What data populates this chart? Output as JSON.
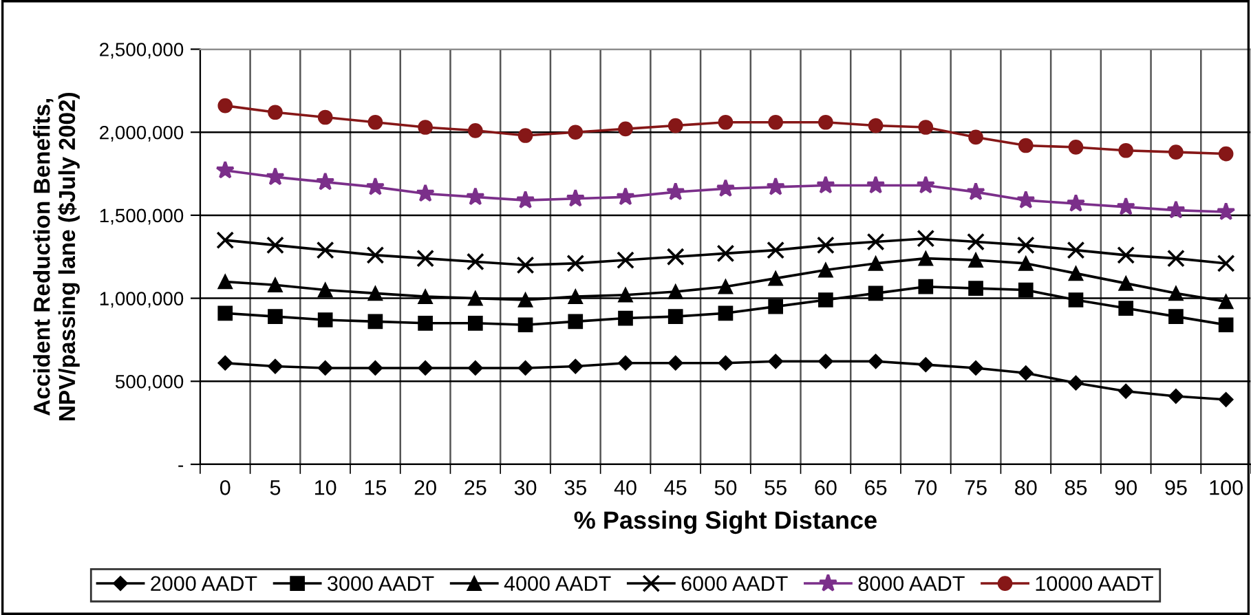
{
  "chart_data": {
    "type": "line",
    "xlabel": "% Passing Sight Distance",
    "ylabel": "Accident Reduction Benefits,\nNPV/passing lane ($July 2002)",
    "categories": [
      "0",
      "5",
      "10",
      "15",
      "20",
      "25",
      "30",
      "35",
      "40",
      "45",
      "50",
      "55",
      "60",
      "65",
      "70",
      "75",
      "80",
      "85",
      "90",
      "95",
      "100"
    ],
    "series": [
      {
        "name": "2000 AADT",
        "color": "#000000",
        "marker": "diamond",
        "values": [
          610000,
          590000,
          580000,
          580000,
          580000,
          580000,
          580000,
          590000,
          610000,
          610000,
          610000,
          620000,
          620000,
          620000,
          600000,
          580000,
          550000,
          490000,
          440000,
          410000,
          390000
        ]
      },
      {
        "name": "3000 AADT",
        "color": "#000000",
        "marker": "square",
        "values": [
          910000,
          890000,
          870000,
          860000,
          850000,
          850000,
          840000,
          860000,
          880000,
          890000,
          910000,
          950000,
          990000,
          1030000,
          1070000,
          1060000,
          1050000,
          990000,
          940000,
          890000,
          840000
        ]
      },
      {
        "name": "4000 AADT",
        "color": "#000000",
        "marker": "triangle",
        "values": [
          1100000,
          1080000,
          1050000,
          1030000,
          1010000,
          1000000,
          990000,
          1010000,
          1020000,
          1040000,
          1070000,
          1120000,
          1170000,
          1210000,
          1240000,
          1230000,
          1210000,
          1150000,
          1090000,
          1030000,
          980000
        ]
      },
      {
        "name": "6000 AADT",
        "color": "#000000",
        "marker": "cross",
        "values": [
          1350000,
          1320000,
          1290000,
          1260000,
          1240000,
          1220000,
          1200000,
          1210000,
          1230000,
          1250000,
          1270000,
          1290000,
          1320000,
          1340000,
          1360000,
          1340000,
          1320000,
          1290000,
          1260000,
          1240000,
          1210000
        ]
      },
      {
        "name": "8000 AADT",
        "color": "#7b2f8a",
        "marker": "star",
        "values": [
          1770000,
          1730000,
          1700000,
          1670000,
          1630000,
          1610000,
          1590000,
          1600000,
          1610000,
          1640000,
          1660000,
          1670000,
          1680000,
          1680000,
          1680000,
          1640000,
          1590000,
          1570000,
          1550000,
          1530000,
          1520000
        ]
      },
      {
        "name": "10000 AADT",
        "color": "#861717",
        "marker": "circle",
        "values": [
          2160000,
          2120000,
          2090000,
          2060000,
          2030000,
          2010000,
          1980000,
          2000000,
          2020000,
          2040000,
          2060000,
          2060000,
          2060000,
          2040000,
          2030000,
          1970000,
          1920000,
          1910000,
          1890000,
          1880000,
          1870000
        ]
      }
    ],
    "ylim": [
      0,
      2500000
    ],
    "yticks": [
      {
        "value": 0,
        "label": "-"
      },
      {
        "value": 500000,
        "label": "500,000"
      },
      {
        "value": 1000000,
        "label": "1,000,000"
      },
      {
        "value": 1500000,
        "label": "1,500,000"
      },
      {
        "value": 2000000,
        "label": "2,000,000"
      },
      {
        "value": 2500000,
        "label": "2,500,000"
      }
    ],
    "grid": true,
    "legend": "bottom",
    "line_style": "solid"
  }
}
